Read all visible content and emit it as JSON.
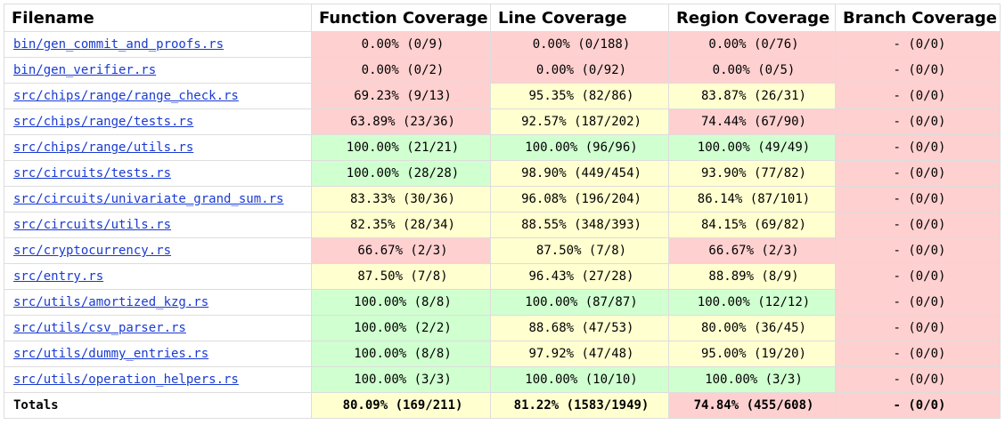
{
  "colors": {
    "low": "#ffd0d0",
    "medium": "#ffffd0",
    "high": "#d0ffd0",
    "link": "#1a3bd1"
  },
  "headers": {
    "filename": "Filename",
    "function": "Function Coverage",
    "line": "Line Coverage",
    "region": "Region Coverage",
    "branch": "Branch Coverage"
  },
  "rows": [
    {
      "file": "bin/gen_commit_and_proofs.rs",
      "func": "0.00% (0/9)",
      "func_level": "red",
      "line": "0.00% (0/188)",
      "line_level": "red",
      "region": "0.00% (0/76)",
      "region_level": "red",
      "branch": "- (0/0)",
      "branch_level": "red"
    },
    {
      "file": "bin/gen_verifier.rs",
      "func": "0.00% (0/2)",
      "func_level": "red",
      "line": "0.00% (0/92)",
      "line_level": "red",
      "region": "0.00% (0/5)",
      "region_level": "red",
      "branch": "- (0/0)",
      "branch_level": "red"
    },
    {
      "file": "src/chips/range/range_check.rs",
      "func": "69.23% (9/13)",
      "func_level": "red",
      "line": "95.35% (82/86)",
      "line_level": "yellow",
      "region": "83.87% (26/31)",
      "region_level": "yellow",
      "branch": "- (0/0)",
      "branch_level": "red"
    },
    {
      "file": "src/chips/range/tests.rs",
      "func": "63.89% (23/36)",
      "func_level": "red",
      "line": "92.57% (187/202)",
      "line_level": "yellow",
      "region": "74.44% (67/90)",
      "region_level": "red",
      "branch": "- (0/0)",
      "branch_level": "red"
    },
    {
      "file": "src/chips/range/utils.rs",
      "func": "100.00% (21/21)",
      "func_level": "green",
      "line": "100.00% (96/96)",
      "line_level": "green",
      "region": "100.00% (49/49)",
      "region_level": "green",
      "branch": "- (0/0)",
      "branch_level": "red"
    },
    {
      "file": "src/circuits/tests.rs",
      "func": "100.00% (28/28)",
      "func_level": "green",
      "line": "98.90% (449/454)",
      "line_level": "yellow",
      "region": "93.90% (77/82)",
      "region_level": "yellow",
      "branch": "- (0/0)",
      "branch_level": "red"
    },
    {
      "file": "src/circuits/univariate_grand_sum.rs",
      "func": "83.33% (30/36)",
      "func_level": "yellow",
      "line": "96.08% (196/204)",
      "line_level": "yellow",
      "region": "86.14% (87/101)",
      "region_level": "yellow",
      "branch": "- (0/0)",
      "branch_level": "red"
    },
    {
      "file": "src/circuits/utils.rs",
      "func": "82.35% (28/34)",
      "func_level": "yellow",
      "line": "88.55% (348/393)",
      "line_level": "yellow",
      "region": "84.15% (69/82)",
      "region_level": "yellow",
      "branch": "- (0/0)",
      "branch_level": "red"
    },
    {
      "file": "src/cryptocurrency.rs",
      "func": "66.67% (2/3)",
      "func_level": "red",
      "line": "87.50% (7/8)",
      "line_level": "yellow",
      "region": "66.67% (2/3)",
      "region_level": "red",
      "branch": "- (0/0)",
      "branch_level": "red"
    },
    {
      "file": "src/entry.rs",
      "func": "87.50% (7/8)",
      "func_level": "yellow",
      "line": "96.43% (27/28)",
      "line_level": "yellow",
      "region": "88.89% (8/9)",
      "region_level": "yellow",
      "branch": "- (0/0)",
      "branch_level": "red"
    },
    {
      "file": "src/utils/amortized_kzg.rs",
      "func": "100.00% (8/8)",
      "func_level": "green",
      "line": "100.00% (87/87)",
      "line_level": "green",
      "region": "100.00% (12/12)",
      "region_level": "green",
      "branch": "- (0/0)",
      "branch_level": "red"
    },
    {
      "file": "src/utils/csv_parser.rs",
      "func": "100.00% (2/2)",
      "func_level": "green",
      "line": "88.68% (47/53)",
      "line_level": "yellow",
      "region": "80.00% (36/45)",
      "region_level": "yellow",
      "branch": "- (0/0)",
      "branch_level": "red"
    },
    {
      "file": "src/utils/dummy_entries.rs",
      "func": "100.00% (8/8)",
      "func_level": "green",
      "line": "97.92% (47/48)",
      "line_level": "yellow",
      "region": "95.00% (19/20)",
      "region_level": "yellow",
      "branch": "- (0/0)",
      "branch_level": "red"
    },
    {
      "file": "src/utils/operation_helpers.rs",
      "func": "100.00% (3/3)",
      "func_level": "green",
      "line": "100.00% (10/10)",
      "line_level": "green",
      "region": "100.00% (3/3)",
      "region_level": "green",
      "branch": "- (0/0)",
      "branch_level": "red"
    }
  ],
  "totals": {
    "label": "Totals",
    "func": "80.09% (169/211)",
    "func_level": "yellow",
    "line": "81.22% (1583/1949)",
    "line_level": "yellow",
    "region": "74.84% (455/608)",
    "region_level": "red",
    "branch": "- (0/0)",
    "branch_level": "red"
  }
}
